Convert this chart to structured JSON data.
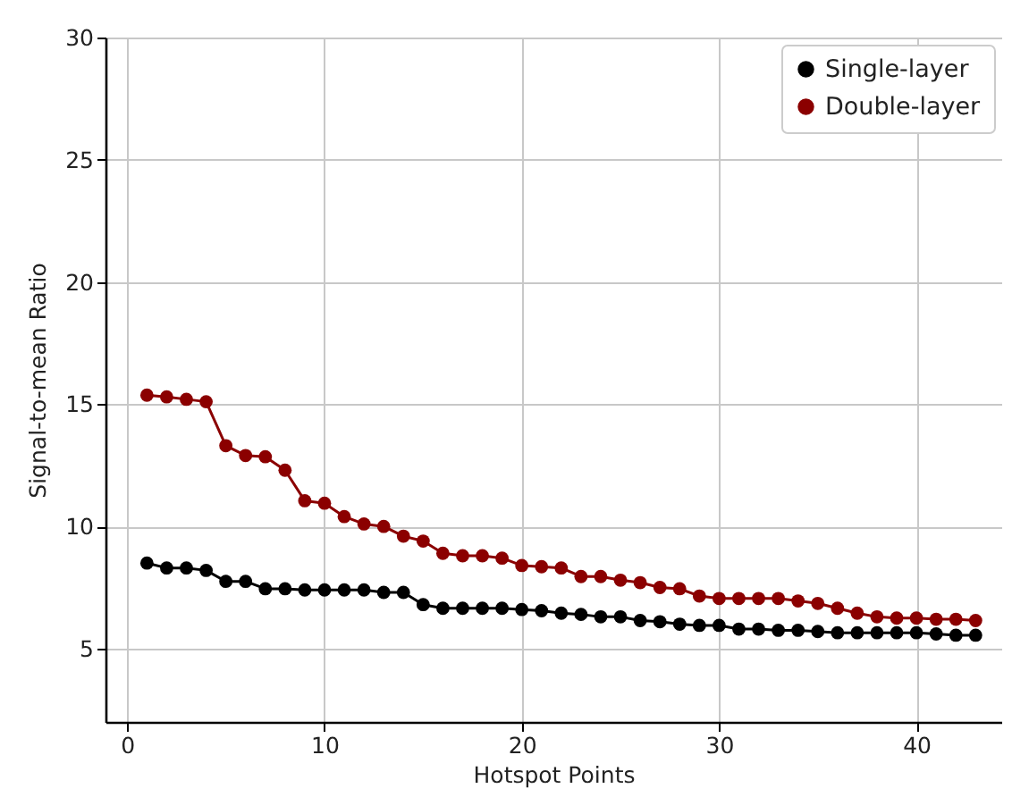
{
  "chart_data": {
    "type": "line",
    "xlabel": "Hotspot Points",
    "ylabel": "Signal-to-mean Ratio",
    "x": [
      1,
      2,
      3,
      4,
      5,
      6,
      7,
      8,
      9,
      10,
      11,
      12,
      13,
      14,
      15,
      16,
      17,
      18,
      19,
      20,
      21,
      22,
      23,
      24,
      25,
      26,
      27,
      28,
      29,
      30,
      31,
      32,
      33,
      34,
      35,
      36,
      37,
      38,
      39,
      40,
      41,
      42,
      43
    ],
    "series": [
      {
        "name": "Single-layer",
        "color": "#000000",
        "values": [
          8.5,
          8.3,
          8.3,
          8.2,
          7.75,
          7.75,
          7.45,
          7.45,
          7.4,
          7.4,
          7.4,
          7.4,
          7.3,
          7.3,
          6.8,
          6.65,
          6.65,
          6.65,
          6.65,
          6.6,
          6.55,
          6.45,
          6.4,
          6.3,
          6.3,
          6.15,
          6.1,
          6.0,
          5.95,
          5.95,
          5.8,
          5.8,
          5.75,
          5.75,
          5.7,
          5.65,
          5.65,
          5.65,
          5.65,
          5.65,
          5.6,
          5.55,
          5.55
        ]
      },
      {
        "name": "Double-layer",
        "color": "#8b0000",
        "values": [
          15.37,
          15.3,
          15.2,
          15.1,
          13.3,
          12.9,
          12.85,
          12.3,
          11.05,
          10.95,
          10.4,
          10.1,
          10.0,
          9.6,
          9.4,
          8.9,
          8.8,
          8.8,
          8.7,
          8.4,
          8.35,
          8.3,
          7.95,
          7.95,
          7.8,
          7.7,
          7.5,
          7.45,
          7.15,
          7.05,
          7.05,
          7.05,
          7.05,
          6.95,
          6.85,
          6.65,
          6.45,
          6.3,
          6.25,
          6.25,
          6.2,
          6.2,
          6.15
        ]
      }
    ],
    "xlim": [
      -1.1,
      44.3
    ],
    "ylim": [
      2,
      30
    ],
    "xticks": [
      0,
      10,
      20,
      30,
      40
    ],
    "yticks": [
      5,
      10,
      15,
      20,
      25,
      30
    ],
    "grid": true,
    "legend": "top right",
    "marker": "circle",
    "line_style": "solid"
  }
}
